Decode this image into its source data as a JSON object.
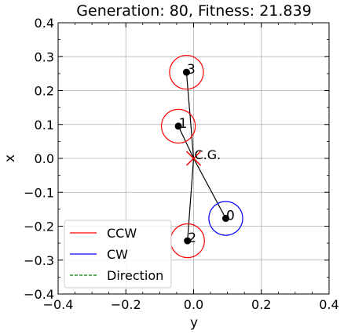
{
  "chart_data": {
    "type": "scatter",
    "title": "Generation: 80, Fitness: 21.839",
    "xlabel": "y",
    "ylabel": "x",
    "xlim": [
      -0.4,
      0.4
    ],
    "ylim": [
      -0.4,
      0.4
    ],
    "grid": true,
    "xticks": [
      -0.4,
      -0.2,
      0.0,
      0.2,
      0.4
    ],
    "yticks": [
      -0.4,
      -0.3,
      -0.2,
      -0.1,
      0.0,
      0.1,
      0.2,
      0.3,
      0.4
    ],
    "xtick_labels": [
      "−0.4",
      "−0.2",
      "0.0",
      "0.2",
      "0.4"
    ],
    "ytick_labels": [
      "−0.4",
      "−0.3",
      "−0.2",
      "−0.1",
      "0.0",
      "0.1",
      "0.2",
      "0.3",
      "0.4"
    ],
    "rotor_radius": 0.05,
    "cg": {
      "label": "C.G.",
      "x": 0.0,
      "y": 0.0
    },
    "rotors": [
      {
        "label": "0",
        "x": 0.095,
        "y": -0.177,
        "direction": "CW"
      },
      {
        "label": "1",
        "x": -0.045,
        "y": 0.095,
        "direction": "CCW"
      },
      {
        "label": "2",
        "x": -0.018,
        "y": -0.243,
        "direction": "CCW"
      },
      {
        "label": "3",
        "x": -0.021,
        "y": 0.254,
        "direction": "CCW"
      }
    ],
    "legend": {
      "placement": "lower-left",
      "entries": [
        {
          "label": "CCW",
          "color": "#ff0000",
          "style": "solid"
        },
        {
          "label": "CW",
          "color": "#0000ff",
          "style": "solid"
        },
        {
          "label": "Direction",
          "color": "#008000",
          "style": "dashed"
        }
      ]
    }
  }
}
